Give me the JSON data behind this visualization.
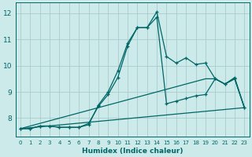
{
  "background_color": "#cceaea",
  "grid_color": "#aacccc",
  "line_color": "#006666",
  "xlabel": "Humidex (Indice chaleur)",
  "ylim": [
    7.3,
    12.4
  ],
  "xlim": [
    -0.5,
    23.5
  ],
  "yticks": [
    8,
    9,
    10,
    11,
    12
  ],
  "xticks": [
    0,
    1,
    2,
    3,
    4,
    5,
    6,
    7,
    8,
    9,
    10,
    11,
    12,
    13,
    14,
    15,
    16,
    17,
    18,
    19,
    20,
    21,
    22,
    23
  ],
  "lines": [
    {
      "x": [
        0,
        1,
        2,
        3,
        4,
        5,
        6,
        7,
        8,
        9,
        10,
        11,
        12,
        13,
        14,
        15,
        16,
        17,
        18,
        19,
        20,
        21,
        22,
        23
      ],
      "y": [
        7.6,
        7.6,
        7.7,
        7.7,
        7.65,
        7.65,
        7.65,
        7.75,
        8.5,
        9.0,
        9.8,
        10.85,
        11.45,
        11.45,
        11.85,
        8.55,
        8.65,
        8.75,
        8.85,
        8.9,
        9.5,
        9.3,
        9.5,
        8.4
      ],
      "has_markers": true
    },
    {
      "x": [
        0,
        1,
        2,
        3,
        4,
        5,
        6,
        7,
        8,
        9,
        10,
        11,
        12,
        13,
        14,
        15,
        16,
        17,
        18,
        19,
        20,
        21,
        22,
        23
      ],
      "y": [
        7.6,
        7.6,
        7.7,
        7.7,
        7.65,
        7.65,
        7.65,
        7.8,
        8.45,
        8.9,
        9.55,
        10.75,
        11.45,
        11.45,
        12.05,
        10.35,
        10.1,
        10.3,
        10.05,
        10.1,
        9.5,
        9.3,
        9.55,
        8.4
      ],
      "has_markers": true
    },
    {
      "x": [
        0,
        19,
        20,
        21,
        22,
        23
      ],
      "y": [
        7.6,
        9.5,
        9.5,
        9.3,
        9.5,
        8.4
      ],
      "has_markers": false
    },
    {
      "x": [
        0,
        23
      ],
      "y": [
        7.6,
        8.4
      ],
      "has_markers": false
    }
  ]
}
